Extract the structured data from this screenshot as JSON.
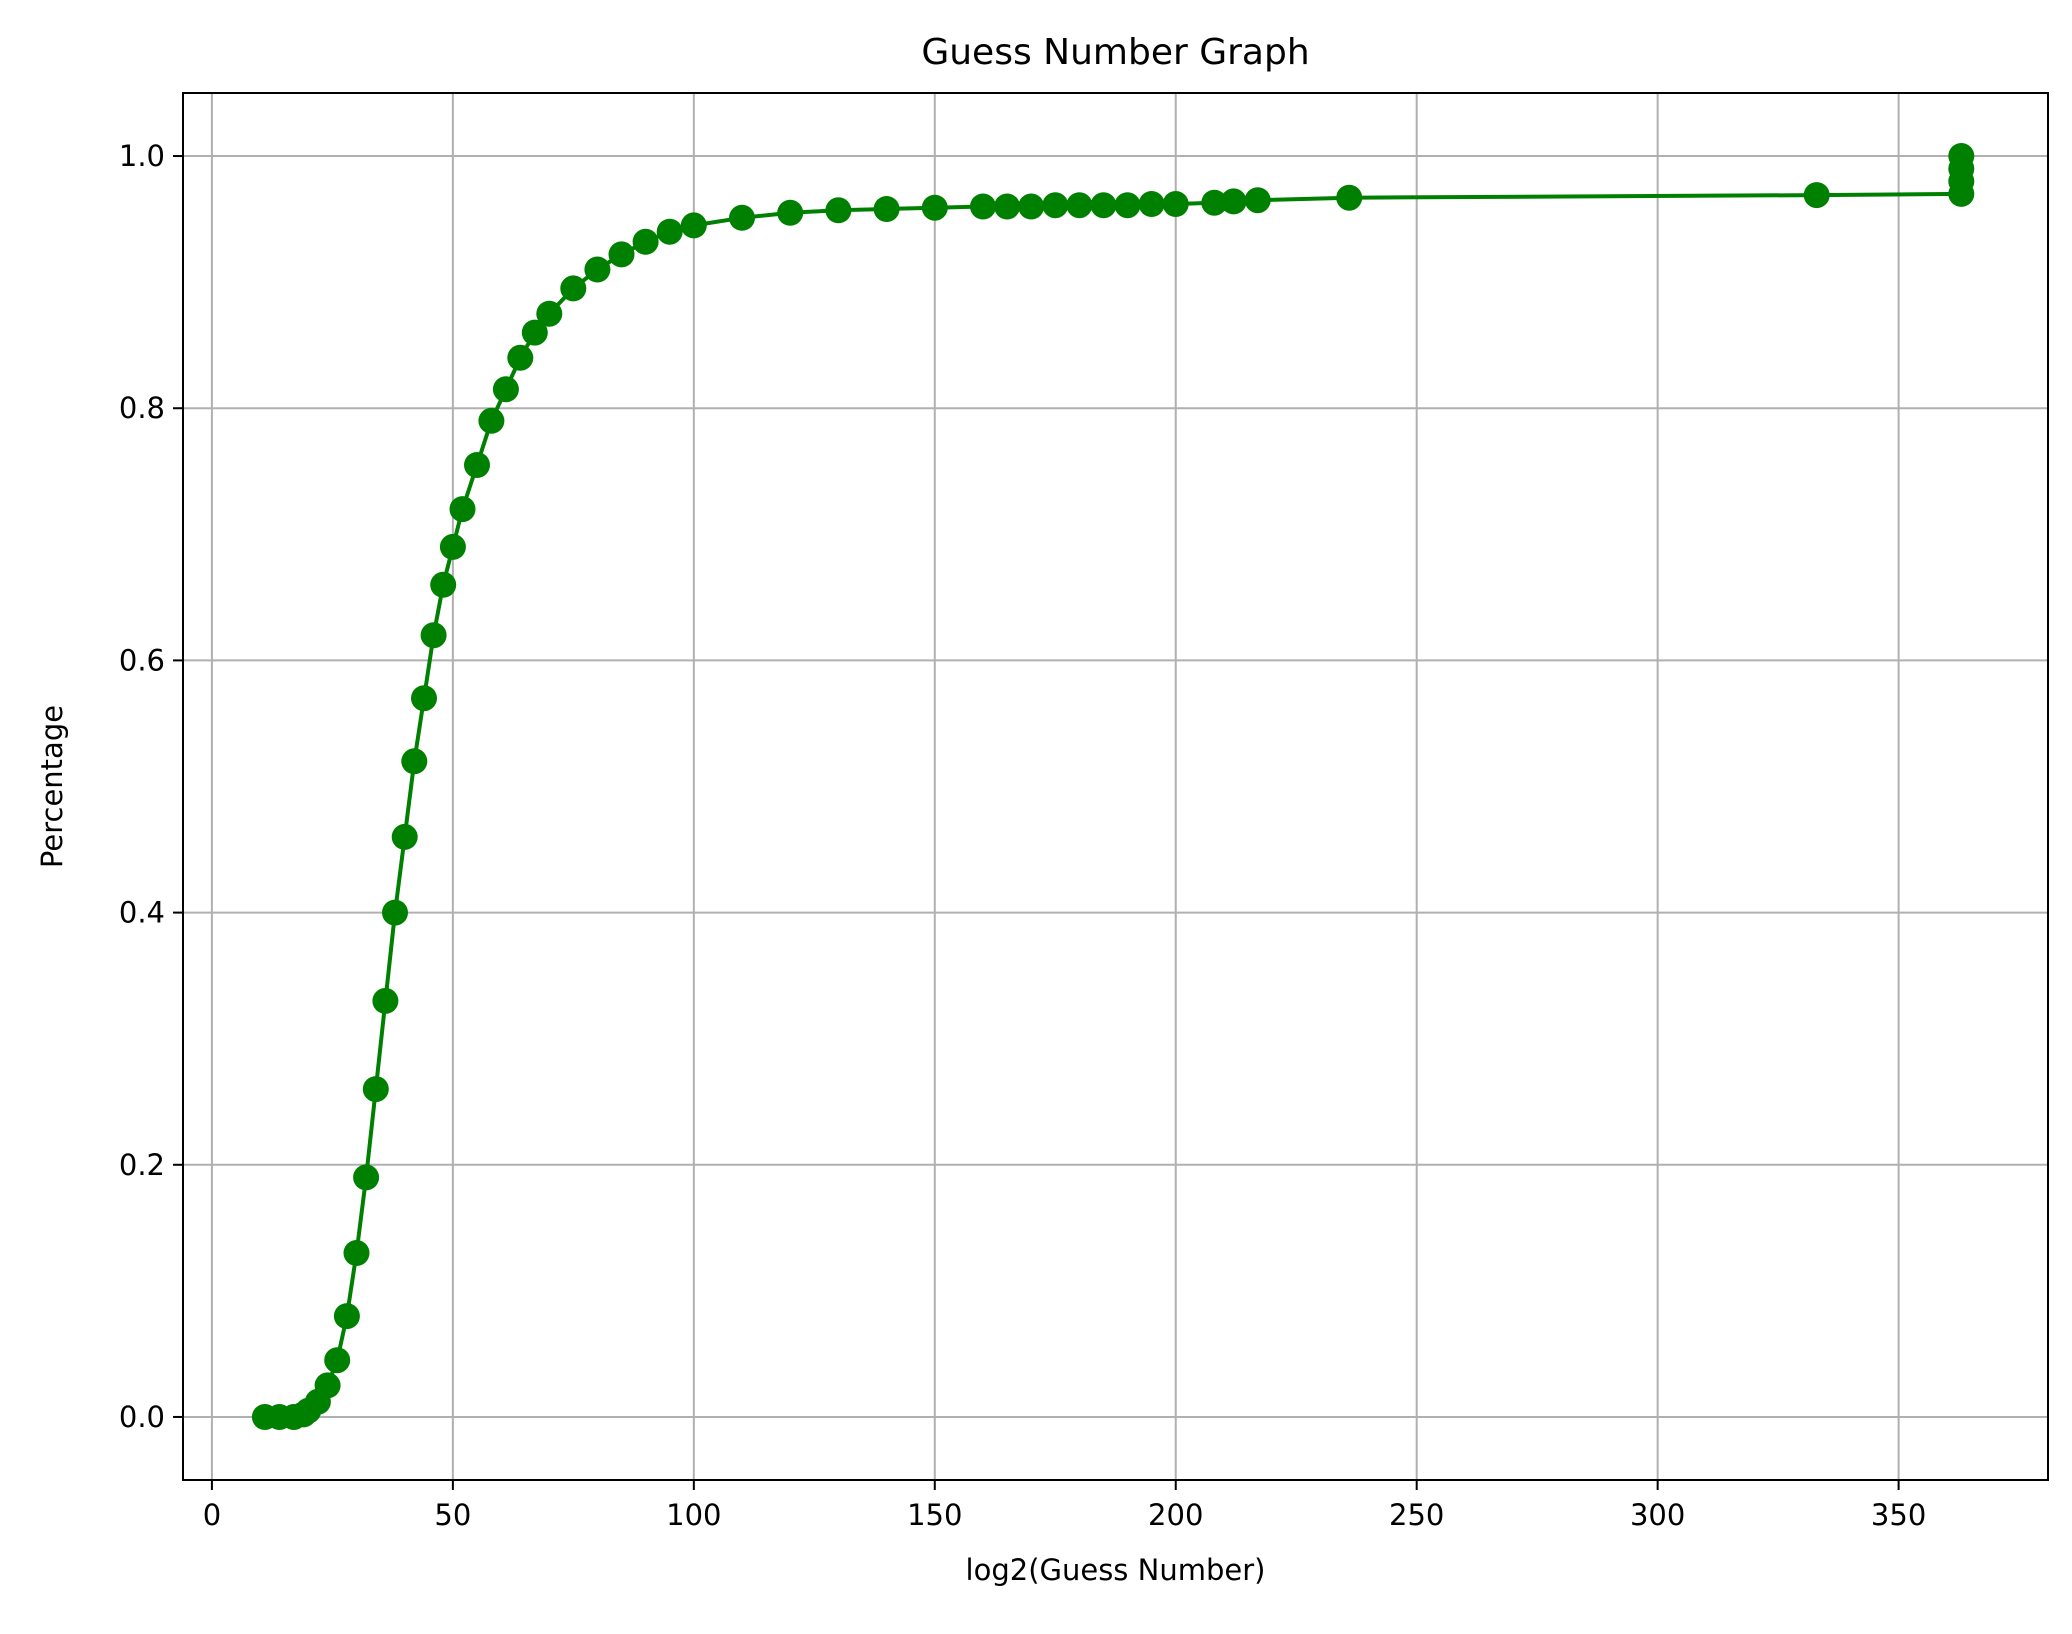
{
  "chart_data": {
    "type": "line",
    "title": "Guess Number Graph",
    "xlabel": "log2(Guess Number)",
    "ylabel": "Percentage",
    "xlim": [
      -6,
      381
    ],
    "ylim": [
      -0.05,
      1.05
    ],
    "xticks": [
      0,
      50,
      100,
      150,
      200,
      250,
      300,
      350
    ],
    "yticks": [
      0.0,
      0.2,
      0.4,
      0.6,
      0.8,
      1.0
    ],
    "xtick_labels": [
      "0",
      "50",
      "100",
      "150",
      "200",
      "250",
      "300",
      "350"
    ],
    "ytick_labels": [
      "0.0",
      "0.2",
      "0.4",
      "0.6",
      "0.8",
      "1.0"
    ],
    "grid": true,
    "series": [
      {
        "color": "#008000",
        "marker": "circle",
        "x": [
          11,
          14,
          17,
          19,
          20,
          22,
          24,
          26,
          28,
          30,
          32,
          34,
          36,
          38,
          40,
          42,
          44,
          46,
          48,
          50,
          52,
          55,
          58,
          61,
          64,
          67,
          70,
          75,
          80,
          85,
          90,
          95,
          100,
          110,
          120,
          130,
          140,
          150,
          160,
          165,
          170,
          175,
          180,
          185,
          190,
          195,
          200,
          208,
          212,
          217,
          236,
          333,
          363,
          363,
          363,
          363
        ],
        "y": [
          0.0,
          0.0,
          0.0,
          0.002,
          0.005,
          0.012,
          0.025,
          0.045,
          0.08,
          0.13,
          0.19,
          0.26,
          0.33,
          0.4,
          0.46,
          0.52,
          0.57,
          0.62,
          0.66,
          0.69,
          0.72,
          0.755,
          0.79,
          0.815,
          0.84,
          0.86,
          0.875,
          0.895,
          0.91,
          0.922,
          0.932,
          0.94,
          0.945,
          0.951,
          0.955,
          0.957,
          0.958,
          0.959,
          0.96,
          0.96,
          0.96,
          0.961,
          0.961,
          0.961,
          0.961,
          0.962,
          0.962,
          0.963,
          0.964,
          0.965,
          0.967,
          0.969,
          0.97,
          0.98,
          0.99,
          1.0
        ]
      }
    ]
  }
}
